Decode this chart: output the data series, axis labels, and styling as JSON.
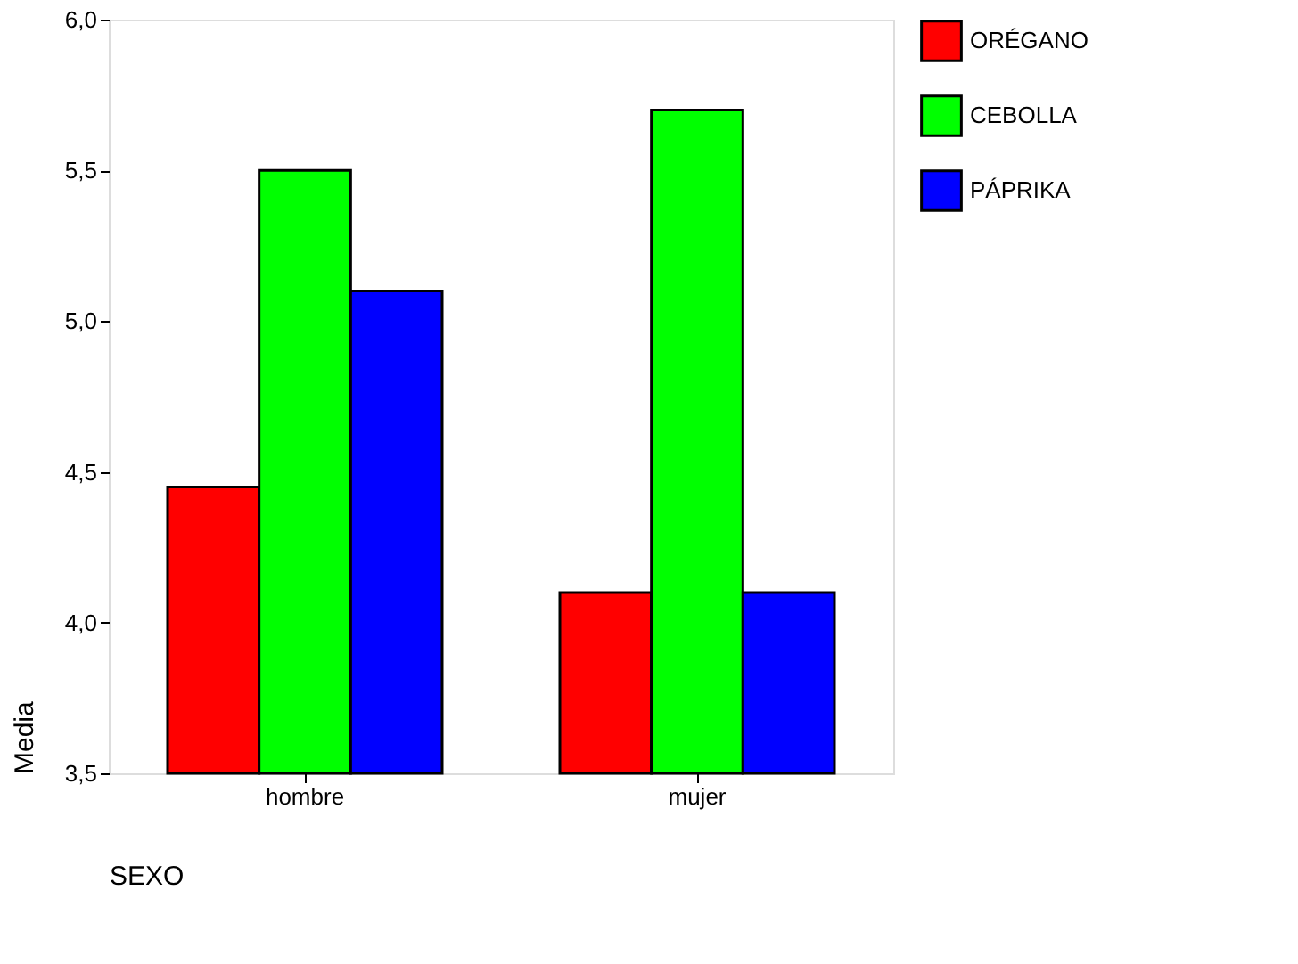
{
  "chart_data": {
    "type": "bar",
    "categories": [
      "hombre",
      "mujer"
    ],
    "xlabel": "SEXO",
    "ylabel": "Media",
    "series": [
      {
        "name": "ORÉGANO",
        "color": "#ff0000",
        "values": [
          4.45,
          4.1
        ]
      },
      {
        "name": "CEBOLLA",
        "color": "#00ff00",
        "values": [
          5.5,
          5.7
        ]
      },
      {
        "name": "PÁPRIKA",
        "color": "#0000ff",
        "values": [
          5.1,
          4.1
        ]
      }
    ],
    "ylim": [
      3.5,
      6.0
    ],
    "yticks": [
      {
        "value": 3.5,
        "label": "3,5"
      },
      {
        "value": 4.0,
        "label": "4,0"
      },
      {
        "value": 4.5,
        "label": "4,5"
      },
      {
        "value": 5.0,
        "label": "5,0"
      },
      {
        "value": 5.5,
        "label": "5,5"
      },
      {
        "value": 6.0,
        "label": "6,0"
      }
    ],
    "grid": false,
    "legend": "right"
  }
}
